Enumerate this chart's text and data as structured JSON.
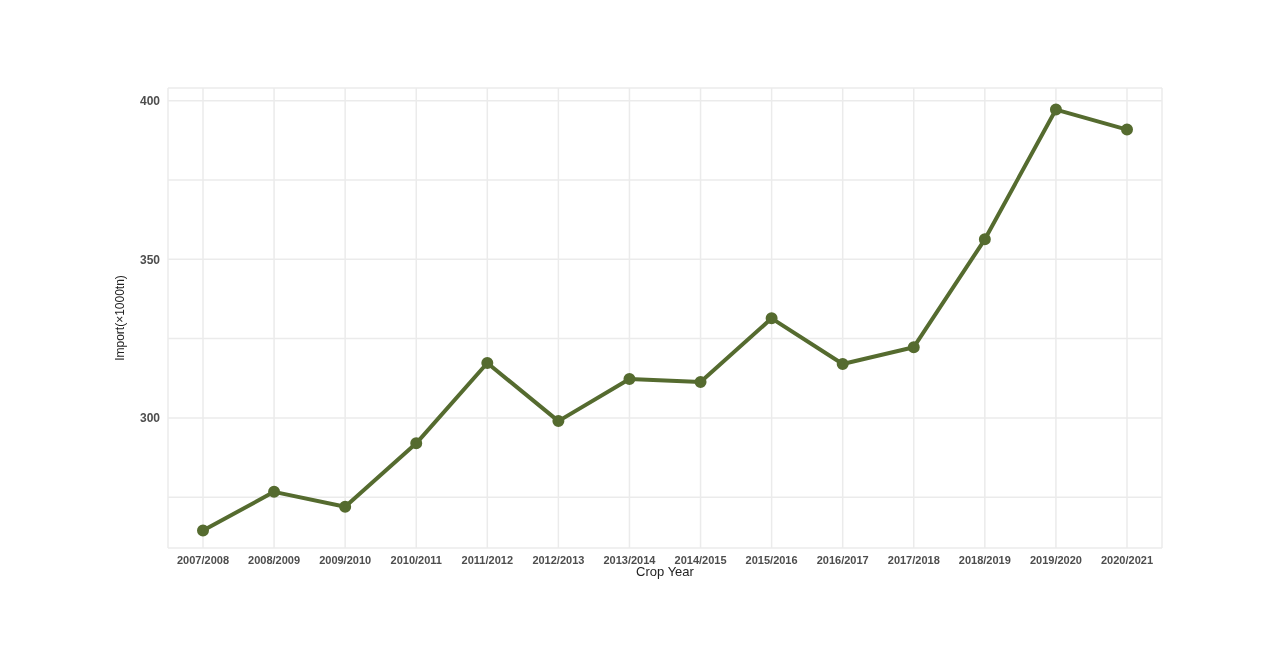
{
  "chart_data": {
    "type": "line",
    "xlabel": "Crop Year",
    "ylabel": "Import(×1000tn)",
    "categories": [
      "2007/2008",
      "2008/2009",
      "2009/2010",
      "2010/2011",
      "2011/2012",
      "2012/2013",
      "2013/2014",
      "2014/2015",
      "2015/2016",
      "2016/2017",
      "2017/2018",
      "2018/2019",
      "2019/2020",
      "2020/2021"
    ],
    "series": [
      {
        "color": "#556b2f",
        "values": [
          264.5,
          276.7,
          272,
          292,
          317.3,
          299,
          312.3,
          311.3,
          331.4,
          317,
          322.3,
          356.3,
          397.2,
          390.9
        ]
      }
    ],
    "ylim": [
      259,
      404
    ],
    "yticks": [
      {
        "value": 275,
        "label": null
      },
      300,
      {
        "value": 325,
        "label": null
      },
      350,
      {
        "value": 375,
        "label": null
      },
      400
    ],
    "grid": true,
    "marker": "circle",
    "line_style": "solid",
    "legend": false
  }
}
